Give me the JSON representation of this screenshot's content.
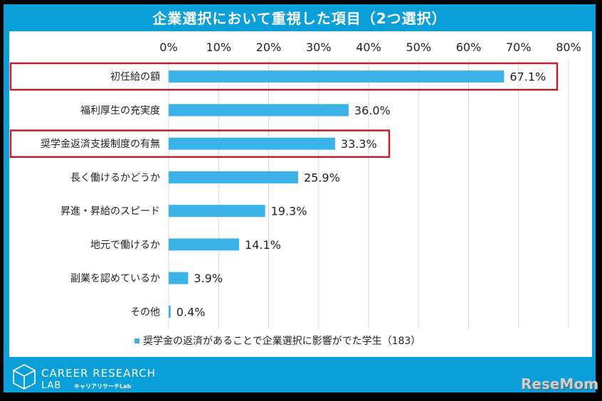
{
  "title": "企業選択において重視した項目（2つ選択）",
  "chart_data": {
    "type": "bar",
    "orientation": "horizontal",
    "categories": [
      "初任給の額",
      "福利厚生の充実度",
      "奨学金返済支援制度の有無",
      "長く働けるかどうか",
      "昇進・昇給のスピード",
      "地元で働けるか",
      "副業を認めているか",
      "その他"
    ],
    "values": [
      67.1,
      36.0,
      33.3,
      25.9,
      19.3,
      14.1,
      3.9,
      0.4
    ],
    "value_labels": [
      "67.1%",
      "36.0%",
      "33.3%",
      "25.9%",
      "19.3%",
      "14.1%",
      "3.9%",
      "0.4%"
    ],
    "xlim": [
      0,
      80
    ],
    "x_ticks": [
      "0%",
      "10%",
      "20%",
      "30%",
      "40%",
      "50%",
      "60%",
      "70%",
      "80%"
    ],
    "x_axis_position": "top",
    "grid": true,
    "legend": "奨学金の返済があることで企業選択に影響がでた学生（183）",
    "legend_position": "bottom",
    "highlighted_categories": [
      "初任給の額",
      "奨学金返済支援制度の有無"
    ],
    "colors": {
      "bar": "#3bb3e8",
      "highlight": "#c0202e",
      "grid": "#d9d9d9"
    }
  },
  "branding": {
    "logo_main": "CAREER RESEARCH",
    "logo_sub": "LAB",
    "logo_kana": "キャリアリサーチLab",
    "watermark": "ReseMom"
  },
  "colors": {
    "frame": "#0a9fd8",
    "background": "#000000"
  }
}
